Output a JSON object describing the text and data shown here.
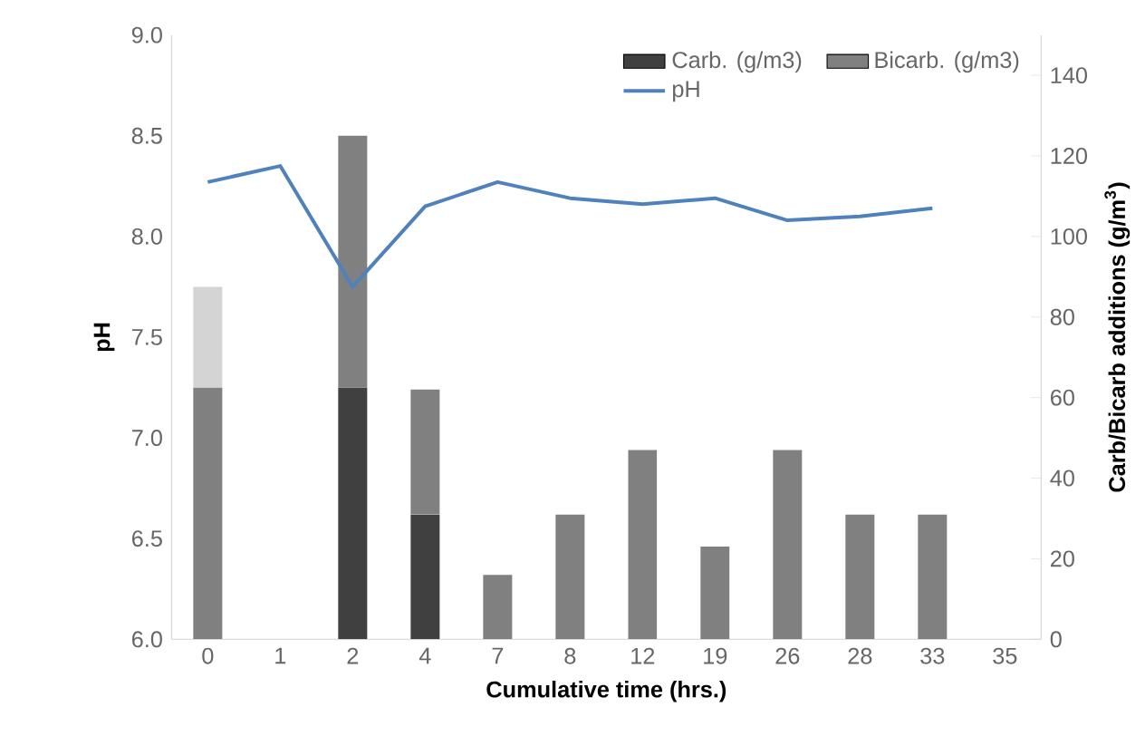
{
  "chart_data": {
    "type": "bar",
    "stacked": true,
    "xlabel": "Cumulative time (hrs.)",
    "ylabel": "pH",
    "y2label": "Carb/Bicarb additions  (g/m$^{3}$)",
    "categories": [
      "0",
      "1",
      "2",
      "4",
      "7",
      "8",
      "12",
      "19",
      "26",
      "28",
      "33",
      "35"
    ],
    "series": [
      {
        "axis": "y2",
        "name": "Carb. (g/m3)",
        "color": "#404040",
        "values": [
          null,
          null,
          62.5,
          31,
          null,
          null,
          null,
          null,
          null,
          null,
          null,
          null
        ]
      },
      {
        "axis": "y2",
        "name": "Bicarb. (g/m3)",
        "color": "#808080",
        "values": [
          62.5,
          null,
          62.5,
          31,
          16,
          31,
          47,
          23,
          47,
          31,
          31,
          null
        ]
      },
      {
        "axis": "y2",
        "color": "#d4d4d4",
        "values": [
          25,
          null,
          null,
          null,
          null,
          null,
          null,
          null,
          null,
          null,
          null,
          null
        ]
      },
      {
        "type": "line",
        "axis": "y",
        "name": "pH",
        "color": "#4f81bd",
        "values": [
          8.27,
          8.35,
          7.75,
          8.15,
          8.27,
          8.19,
          8.16,
          8.19,
          8.08,
          8.1,
          8.14,
          null
        ]
      }
    ],
    "ylim": [
      6,
      9
    ],
    "yticks": [
      {
        "value": 6,
        "label": "6.0"
      },
      {
        "value": 6.5,
        "label": "6.5"
      },
      {
        "value": 7,
        "label": "7.0"
      },
      {
        "value": 7.5,
        "label": "7.5"
      },
      {
        "value": 8,
        "label": "8.0"
      },
      {
        "value": 8.5,
        "label": "8.5"
      },
      {
        "value": 9,
        "label": "9.0"
      }
    ],
    "y2lim": [
      0,
      150
    ],
    "y2ticks": [
      0,
      20,
      40,
      60,
      80,
      100,
      120,
      140
    ],
    "legend": "top right",
    "grid": false,
    "marker": "none",
    "line_style": "solid"
  }
}
